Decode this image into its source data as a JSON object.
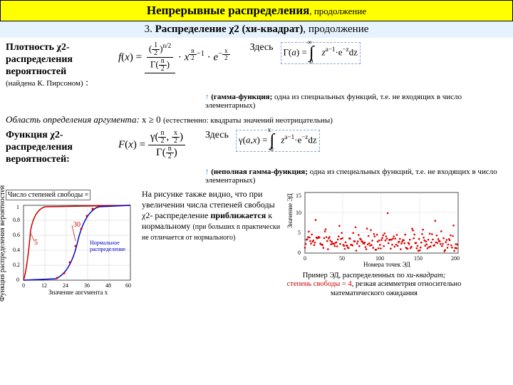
{
  "title": {
    "main": "Непрерывные распределения",
    "sub": ", продолжение"
  },
  "subtitle": {
    "num": "3.",
    "name": "Распределение χ2  (хи-квадрат)",
    "sub": ", продолжение"
  },
  "density": {
    "heading_bold": "Плотность χ2-распределения вероятностей",
    "heading_note": "(найдена К. Пирсоном)",
    "zdyes": "Здесь",
    "gamma_note_bold": "(гамма-функция;",
    "gamma_note_rest": " одна из специальных функций, т.е. не входящих в число элементарных)"
  },
  "domain": {
    "italic": "Область определения аргумента:",
    "cond": " x ≥ 0 ",
    "note": "(естественно: квадраты значений неотрицательны)"
  },
  "cdf": {
    "heading_bold": "Функция χ2-распределения вероятностей:",
    "zdyes": "Здесь",
    "gamma_note_bold": "(неполная гамма-функция;",
    "gamma_note_rest": " одна из специальных функций, т.е. не входящих в число элементарных)"
  },
  "cdf_plot": {
    "input_label": "Число степеней свободы =",
    "xlabel": "Значение аргумента x",
    "ylabel": "Функция распределения вероятностей",
    "xticks": [
      0,
      12,
      24,
      36,
      48,
      60
    ],
    "yticks": [
      0,
      0.2,
      0.4,
      0.6,
      0.8,
      1
    ],
    "annotations": {
      "a30": "30",
      "a5": "5",
      "norm": "Нормальное распределение"
    },
    "colors": {
      "curve1": "#cc0000",
      "curve2": "#0000cc",
      "dots": "#cc0000",
      "grid": "#cccccc",
      "axis": "#000"
    }
  },
  "middle": {
    "t1": "На рисунке также видно, что при увеличении числа степеней свободы χ2- распределение ",
    "t2_bold": "приближается",
    "t3": " к нормальному ",
    "t4_sm": "(при больших n практически не отличается от нормального)"
  },
  "scatter": {
    "ylabel": "Значение ЭД",
    "xlabel": "Номера точек ЭД",
    "xticks": [
      0,
      50,
      100,
      150,
      200
    ],
    "yticks": [
      0,
      5,
      10,
      15
    ],
    "point_color": "#e00000",
    "grid_color": "#dddddd",
    "caption1": "Пример ЭД, распределенных по ",
    "caption1_it": "хи-квадрат;",
    "caption2_red": "степень свободы = 4",
    "caption3": ", резкая асимметрия относительно математического ожидания"
  }
}
